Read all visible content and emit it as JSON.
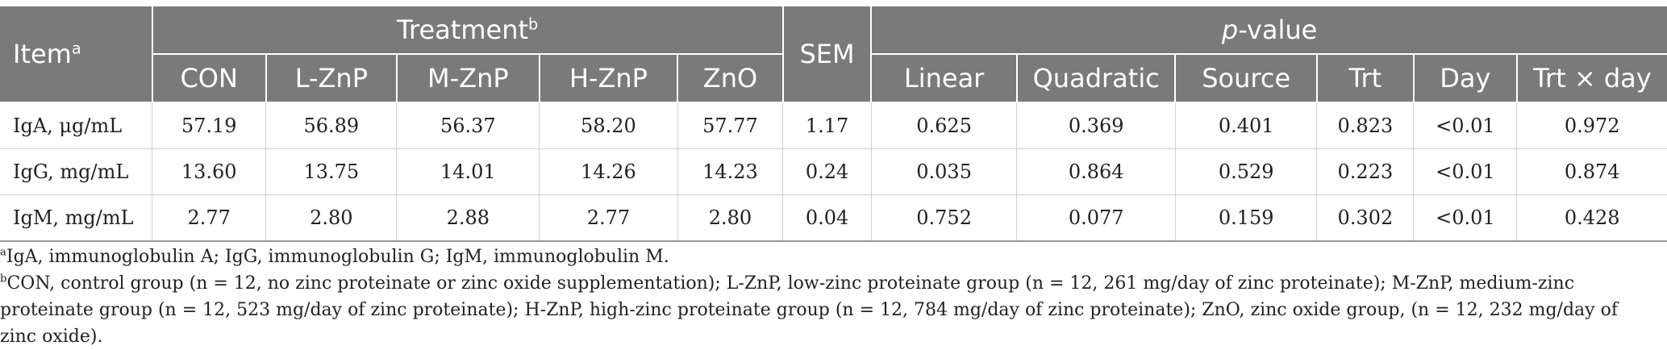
{
  "table": {
    "item_header": "Item",
    "item_header_sup": "a",
    "treatment_header": "Treatment",
    "treatment_header_sup": "b",
    "sem_header": "SEM",
    "pvalue_header_italic": "p",
    "pvalue_header_rest": "-value",
    "treatment_columns": [
      "CON",
      "L-ZnP",
      "M-ZnP",
      "H-ZnP",
      "ZnO"
    ],
    "pvalue_columns": [
      "Linear",
      "Quadratic",
      "Source",
      "Trt",
      "Day",
      "Trt × day"
    ],
    "rows": [
      {
        "item": "IgA, μg/mL",
        "values": [
          "57.19",
          "56.89",
          "56.37",
          "58.20",
          "57.77",
          "1.17",
          "0.625",
          "0.369",
          "0.401",
          "0.823",
          "<0.01",
          "0.972"
        ]
      },
      {
        "item": "IgG, mg/mL",
        "values": [
          "13.60",
          "13.75",
          "14.01",
          "14.26",
          "14.23",
          "0.24",
          "0.035",
          "0.864",
          "0.529",
          "0.223",
          "<0.01",
          "0.874"
        ]
      },
      {
        "item": "IgM, mg/mL",
        "values": [
          "2.77",
          "2.80",
          "2.88",
          "2.77",
          "2.80",
          "0.04",
          "0.752",
          "0.077",
          "0.159",
          "0.302",
          "<0.01",
          "0.428"
        ]
      }
    ]
  },
  "footnotes": {
    "a_mark": "a",
    "a_text": "IgA, immunoglobulin A; IgG, immunoglobulin G; IgM, immunoglobulin M.",
    "b_mark": "b",
    "b_text": "CON, control group (n = 12, no zinc proteinate or zinc oxide supplementation); L-ZnP, low-zinc proteinate group (n = 12, 261 mg/day of zinc proteinate); M-ZnP, medium-zinc proteinate group (n = 12, 523 mg/day of zinc proteinate); H-ZnP, high-zinc proteinate group (n = 12, 784 mg/day of zinc proteinate); ZnO, zinc oxide group, (n = 12, 232 mg/day of zinc oxide)."
  }
}
